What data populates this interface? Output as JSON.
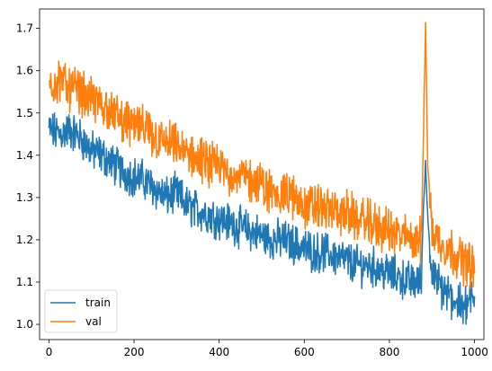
{
  "chart_data": {
    "type": "line",
    "title": "",
    "xlabel": "",
    "ylabel": "",
    "xlim": [
      -22,
      1022
    ],
    "ylim": [
      0.964,
      1.746
    ],
    "x_ticks": [
      0,
      200,
      400,
      600,
      800,
      1000
    ],
    "y_ticks": [
      1.0,
      1.1,
      1.2,
      1.3,
      1.4,
      1.5,
      1.6,
      1.7
    ],
    "x_tick_labels": [
      "0",
      "200",
      "400",
      "600",
      "800",
      "1000"
    ],
    "y_tick_labels": [
      "1.0",
      "1.1",
      "1.2",
      "1.3",
      "1.4",
      "1.5",
      "1.6",
      "1.7"
    ],
    "grid": false,
    "legend_position": "lower-left",
    "series": [
      {
        "name": "train",
        "color": "#1f77b4",
        "x": [
          0,
          25,
          50,
          75,
          100,
          125,
          150,
          175,
          200,
          225,
          250,
          275,
          300,
          325,
          350,
          375,
          400,
          425,
          450,
          475,
          500,
          525,
          550,
          575,
          600,
          625,
          650,
          675,
          700,
          725,
          750,
          775,
          800,
          825,
          850,
          875,
          880,
          885,
          890,
          900,
          925,
          950,
          975,
          990,
          1000
        ],
        "y": [
          1.46,
          1.45,
          1.46,
          1.44,
          1.41,
          1.4,
          1.38,
          1.36,
          1.35,
          1.34,
          1.32,
          1.3,
          1.31,
          1.28,
          1.27,
          1.26,
          1.25,
          1.24,
          1.23,
          1.22,
          1.21,
          1.2,
          1.2,
          1.19,
          1.18,
          1.17,
          1.17,
          1.16,
          1.15,
          1.14,
          1.14,
          1.13,
          1.12,
          1.11,
          1.1,
          1.1,
          1.28,
          1.38,
          1.25,
          1.12,
          1.08,
          1.06,
          1.04,
          1.06,
          1.05
        ]
      },
      {
        "name": "val",
        "color": "#ff7f0e",
        "x": [
          0,
          25,
          50,
          75,
          100,
          125,
          150,
          175,
          200,
          225,
          250,
          275,
          300,
          325,
          350,
          375,
          400,
          425,
          450,
          475,
          500,
          525,
          550,
          575,
          600,
          625,
          650,
          675,
          700,
          725,
          750,
          775,
          800,
          825,
          850,
          875,
          880,
          885,
          890,
          900,
          925,
          950,
          975,
          990,
          1000
        ],
        "y": [
          1.57,
          1.58,
          1.56,
          1.55,
          1.53,
          1.52,
          1.5,
          1.48,
          1.47,
          1.46,
          1.44,
          1.43,
          1.42,
          1.4,
          1.39,
          1.38,
          1.37,
          1.36,
          1.35,
          1.34,
          1.33,
          1.31,
          1.31,
          1.3,
          1.28,
          1.28,
          1.27,
          1.27,
          1.26,
          1.25,
          1.24,
          1.23,
          1.22,
          1.21,
          1.2,
          1.2,
          1.45,
          1.71,
          1.38,
          1.22,
          1.19,
          1.17,
          1.15,
          1.14,
          1.13
        ]
      }
    ]
  }
}
